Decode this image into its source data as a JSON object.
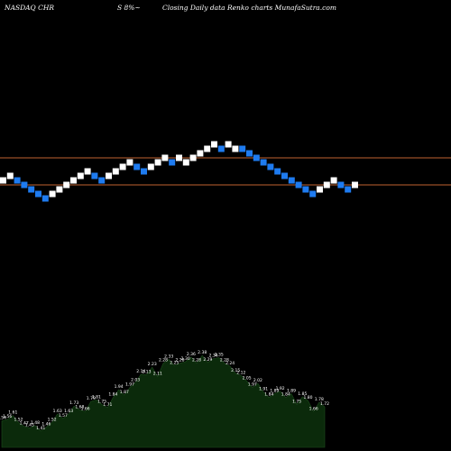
{
  "header": {
    "symbol": "NASDAQ CHR",
    "change": "S 8%~",
    "caption": "Closing Daily data  Renko  charts MunafaSutra.com"
  },
  "colors": {
    "background": "#000000",
    "up_brick": "#ffffff",
    "down_brick": "#1e7bf0",
    "reference_line": "#c0622f",
    "volume_fill": "#0b2a0b",
    "label_text": "#ffffff"
  },
  "chart_data": [
    {
      "type": "renko",
      "title": "",
      "bricks": [
        {
          "dir": "up",
          "row": 0
        },
        {
          "dir": "up",
          "row": 1
        },
        {
          "dir": "down",
          "row": 0
        },
        {
          "dir": "down",
          "row": -1
        },
        {
          "dir": "down",
          "row": -2
        },
        {
          "dir": "down",
          "row": -3
        },
        {
          "dir": "down",
          "row": -4
        },
        {
          "dir": "up",
          "row": -3
        },
        {
          "dir": "up",
          "row": -2
        },
        {
          "dir": "up",
          "row": -1
        },
        {
          "dir": "up",
          "row": 0
        },
        {
          "dir": "up",
          "row": 1
        },
        {
          "dir": "up",
          "row": 2
        },
        {
          "dir": "down",
          "row": 1
        },
        {
          "dir": "down",
          "row": 0
        },
        {
          "dir": "up",
          "row": 1
        },
        {
          "dir": "up",
          "row": 2
        },
        {
          "dir": "up",
          "row": 3
        },
        {
          "dir": "up",
          "row": 4
        },
        {
          "dir": "down",
          "row": 3
        },
        {
          "dir": "down",
          "row": 2
        },
        {
          "dir": "up",
          "row": 3
        },
        {
          "dir": "up",
          "row": 4
        },
        {
          "dir": "up",
          "row": 5
        },
        {
          "dir": "down",
          "row": 4
        },
        {
          "dir": "up",
          "row": 5
        },
        {
          "dir": "up",
          "row": 4
        },
        {
          "dir": "up",
          "row": 5
        },
        {
          "dir": "up",
          "row": 6
        },
        {
          "dir": "up",
          "row": 7
        },
        {
          "dir": "up",
          "row": 8
        },
        {
          "dir": "down",
          "row": 7
        },
        {
          "dir": "up",
          "row": 8
        },
        {
          "dir": "up",
          "row": 7
        },
        {
          "dir": "down",
          "row": 7
        },
        {
          "dir": "down",
          "row": 6
        },
        {
          "dir": "down",
          "row": 5
        },
        {
          "dir": "down",
          "row": 4
        },
        {
          "dir": "down",
          "row": 3
        },
        {
          "dir": "down",
          "row": 2
        },
        {
          "dir": "down",
          "row": 1
        },
        {
          "dir": "down",
          "row": 0
        },
        {
          "dir": "down",
          "row": -1
        },
        {
          "dir": "down",
          "row": -2
        },
        {
          "dir": "down",
          "row": -3
        },
        {
          "dir": "up",
          "row": -2
        },
        {
          "dir": "up",
          "row": -1
        },
        {
          "dir": "up",
          "row": 0
        },
        {
          "dir": "down",
          "row": -1
        },
        {
          "dir": "down",
          "row": -2
        },
        {
          "dir": "up",
          "row": -1
        }
      ],
      "reference_lines": [
        {
          "name": "",
          "level": "upper"
        },
        {
          "name": "",
          "level": "lower"
        }
      ]
    },
    {
      "type": "area",
      "title": "",
      "values": [
        1.54,
        1.56,
        1.61,
        1.52,
        1.47,
        1.45,
        1.48,
        1.41,
        1.46,
        1.52,
        1.63,
        1.57,
        1.63,
        1.73,
        1.68,
        1.66,
        1.79,
        1.81,
        1.75,
        1.71,
        1.84,
        1.94,
        1.87,
        1.97,
        2.03,
        2.14,
        2.13,
        2.23,
        2.11,
        2.28,
        2.33,
        2.25,
        2.28,
        2.3,
        2.36,
        2.28,
        2.38,
        2.29,
        2.34,
        2.35,
        2.28,
        2.24,
        2.15,
        2.12,
        2.05,
        1.97,
        2.02,
        1.91,
        1.84,
        1.89,
        1.92,
        1.84,
        1.89,
        1.75,
        1.85,
        1.8,
        1.66,
        1.78,
        1.72
      ],
      "labels": [
        "1.54",
        "1.56",
        "1.61",
        "1.52",
        "1.47",
        "1.45",
        "1.48",
        "1.41",
        "1.46",
        "1.52",
        "1.63",
        "1.57",
        "1.63",
        "1.73",
        "1.68",
        "1.66",
        "1.79",
        "1.81",
        "1.75",
        "1.71",
        "1.84",
        "1.94",
        "1.87",
        "1.97",
        "2.03",
        "2.14",
        "2.13",
        "2.23",
        "2.11",
        "2.28",
        "2.33",
        "2.25",
        "2.28",
        "2.30",
        "2.36",
        "2.28",
        "2.38",
        "2.29",
        "2.34",
        "2.35",
        "2.28",
        "2.24",
        "2.15",
        "2.12",
        "2.05",
        "1.97",
        "2.02",
        "1.91",
        "1.84",
        "1.89",
        "1.92",
        "1.84",
        "1.89",
        "1.75",
        "1.85",
        "1.80",
        "1.66",
        "1.78",
        "1.72"
      ]
    }
  ]
}
